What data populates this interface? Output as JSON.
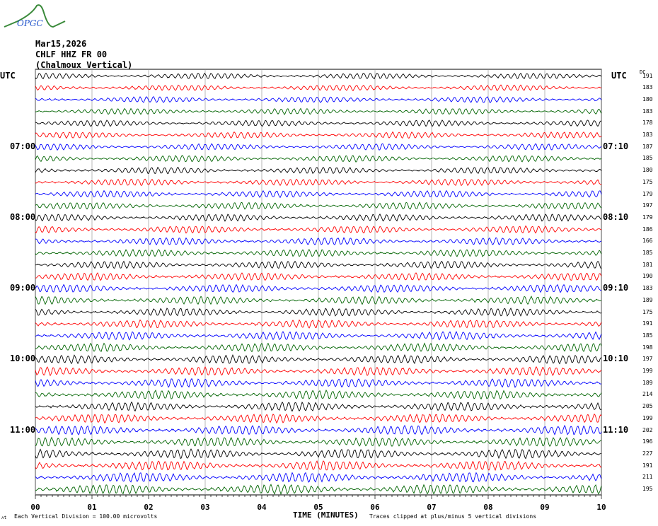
{
  "logo": {
    "text": "OPGC"
  },
  "header": {
    "date": "Mar15,2026",
    "station": "CHLF HHZ FR 00",
    "location": "(Chalmoux Vertical)"
  },
  "chart_data": {
    "type": "line",
    "subtype": "helicorder",
    "xlabel": "TIME (MINUTES)",
    "x_ticks": [
      "00",
      "01",
      "02",
      "03",
      "04",
      "05",
      "06",
      "07",
      "08",
      "09",
      "10"
    ],
    "xlim": [
      0,
      10
    ],
    "left_axis_title": "UTC",
    "right_axis_title": "UTC",
    "dc_title": "DC",
    "left_time_labels": [
      {
        "trace": 6,
        "label": "07:00"
      },
      {
        "trace": 12,
        "label": "08:00"
      },
      {
        "trace": 18,
        "label": "09:00"
      },
      {
        "trace": 24,
        "label": "10:00"
      },
      {
        "trace": 30,
        "label": "11:00"
      }
    ],
    "right_time_labels": [
      {
        "trace": 6,
        "label": "07:10"
      },
      {
        "trace": 12,
        "label": "08:10"
      },
      {
        "trace": 18,
        "label": "09:10"
      },
      {
        "trace": 24,
        "label": "10:10"
      },
      {
        "trace": 30,
        "label": "11:10"
      }
    ],
    "dc_offsets": [
      191,
      183,
      180,
      183,
      178,
      183,
      187,
      185,
      180,
      175,
      179,
      197,
      179,
      186,
      166,
      185,
      181,
      190,
      183,
      189,
      175,
      191,
      185,
      198,
      197,
      199,
      189,
      214,
      205,
      199,
      202,
      196,
      227,
      191,
      211,
      195
    ],
    "trace_colors": [
      "#000000",
      "#ff0000",
      "#0000ff",
      "#006400"
    ],
    "grid": true,
    "footer_left": "Each Vertical Division =  100.00 microvolts",
    "footer_right": "Traces clipped at plus/minus 5 vertical divisions"
  }
}
